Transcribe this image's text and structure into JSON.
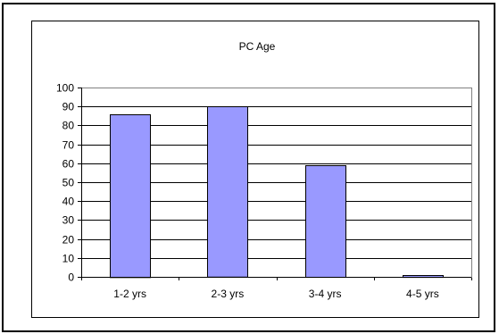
{
  "chart_data": {
    "type": "bar",
    "title": "PC Age",
    "xlabel": "",
    "ylabel": "",
    "categories": [
      "1-2 yrs",
      "2-3 yrs",
      "3-4 yrs",
      "4-5 yrs"
    ],
    "values": [
      86,
      90,
      59,
      1
    ],
    "ylim": [
      0,
      100
    ],
    "yticks": [
      0,
      10,
      20,
      30,
      40,
      50,
      60,
      70,
      80,
      90,
      100
    ],
    "grid": true,
    "legend": "none",
    "bar_color": "#9999ff",
    "bar_border_color": "#000000",
    "plot_background": "#ffffff"
  }
}
